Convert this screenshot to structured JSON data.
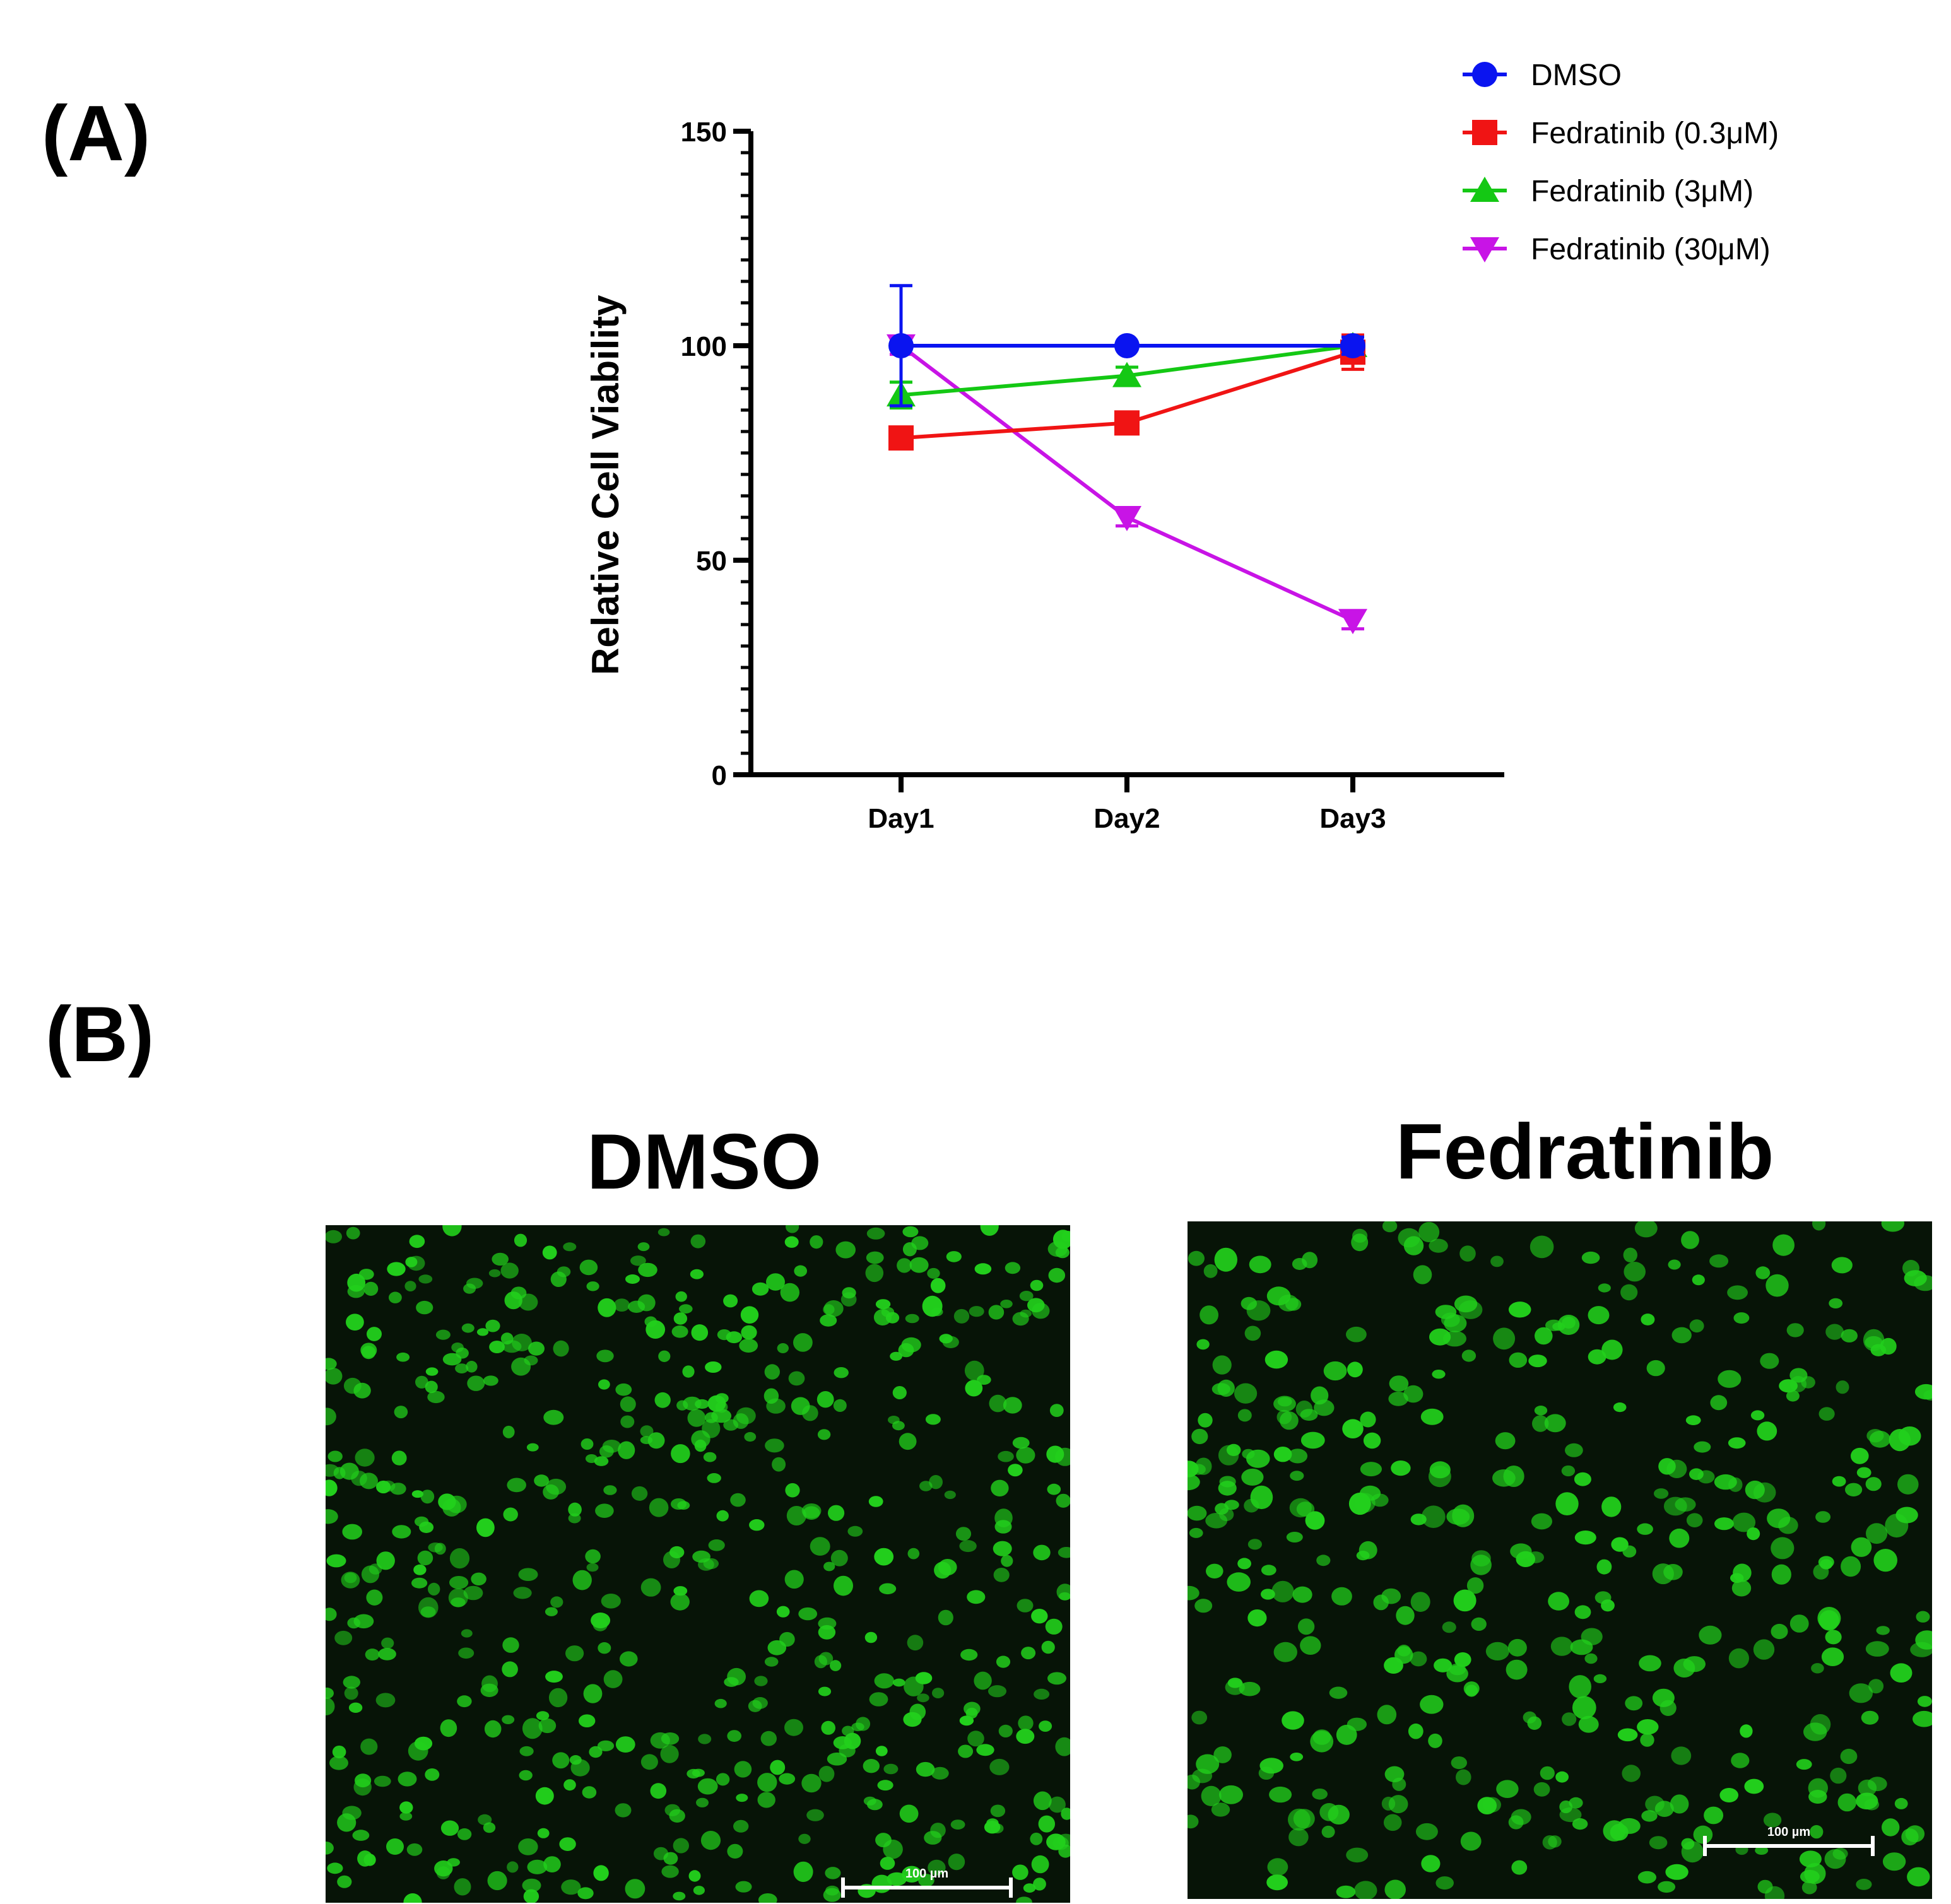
{
  "panels": {
    "a_label": "(A)",
    "b_label": "(B)"
  },
  "chart_data": {
    "type": "line",
    "title": "",
    "xlabel": "",
    "ylabel": "Relative Cell Viability",
    "categories": [
      "Day1",
      "Day2",
      "Day3"
    ],
    "ylim": [
      0,
      150
    ],
    "yticks": [
      0,
      50,
      100,
      150
    ],
    "ytick_labels": [
      "0",
      "50",
      "100",
      "150"
    ],
    "legend_position": "top-right",
    "series": [
      {
        "name": "DMSO",
        "color": "#0a14f0",
        "marker": "circle",
        "values": [
          100,
          100,
          100
        ],
        "errors": [
          14,
          0,
          2
        ]
      },
      {
        "name": "Fedratinib (0.3μM)",
        "color": "#f01414",
        "marker": "square",
        "values": [
          78.5,
          82,
          98.5
        ],
        "errors": [
          0,
          0,
          4
        ]
      },
      {
        "name": "Fedratinib (3μM)",
        "color": "#14c814",
        "marker": "triangle-up",
        "values": [
          88.5,
          93,
          100
        ],
        "errors": [
          3,
          2,
          1
        ]
      },
      {
        "name": "Fedratinib (30μM)",
        "color": "#c814e6",
        "marker": "triangle-down",
        "values": [
          100,
          60,
          36
        ],
        "errors": [
          2,
          2,
          2
        ]
      }
    ]
  },
  "images": {
    "dmso_title": "DMSO",
    "fed_title": "Fedratinib",
    "scale_bar_label": "100 µm",
    "fluorescence_color": "#22d01c"
  }
}
